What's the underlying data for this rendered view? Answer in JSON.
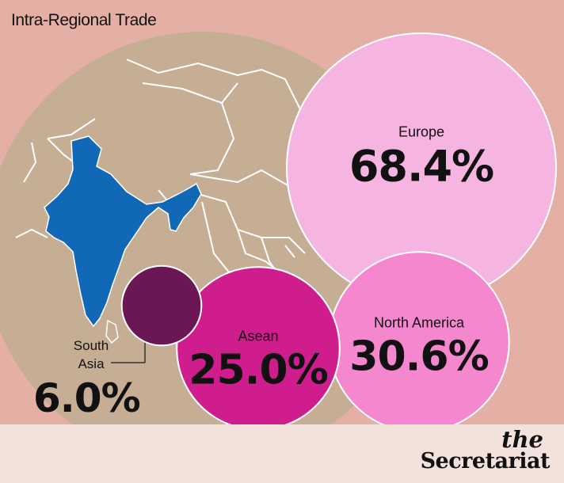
{
  "title": "Intra-Regional Trade",
  "brand": {
    "line1": "the",
    "line2": "Secretariat"
  },
  "colors": {
    "background": "#e4b0a6",
    "map_land": "#c6ae95",
    "india": "#1168b7",
    "south_asia": "#6b1753",
    "asean": "#cf1d8e",
    "north_america": "#f587cf",
    "europe": "#f6b5e0"
  },
  "chart_data": {
    "type": "bubble",
    "title": "Intra-Regional Trade",
    "unit": "%",
    "categories": [
      "South Asia",
      "Asean",
      "North America",
      "Europe"
    ],
    "values": [
      6.0,
      25.0,
      30.6,
      68.4
    ],
    "value_labels": [
      "6.0%",
      "25.0%",
      "30.6%",
      "68.4%"
    ]
  }
}
